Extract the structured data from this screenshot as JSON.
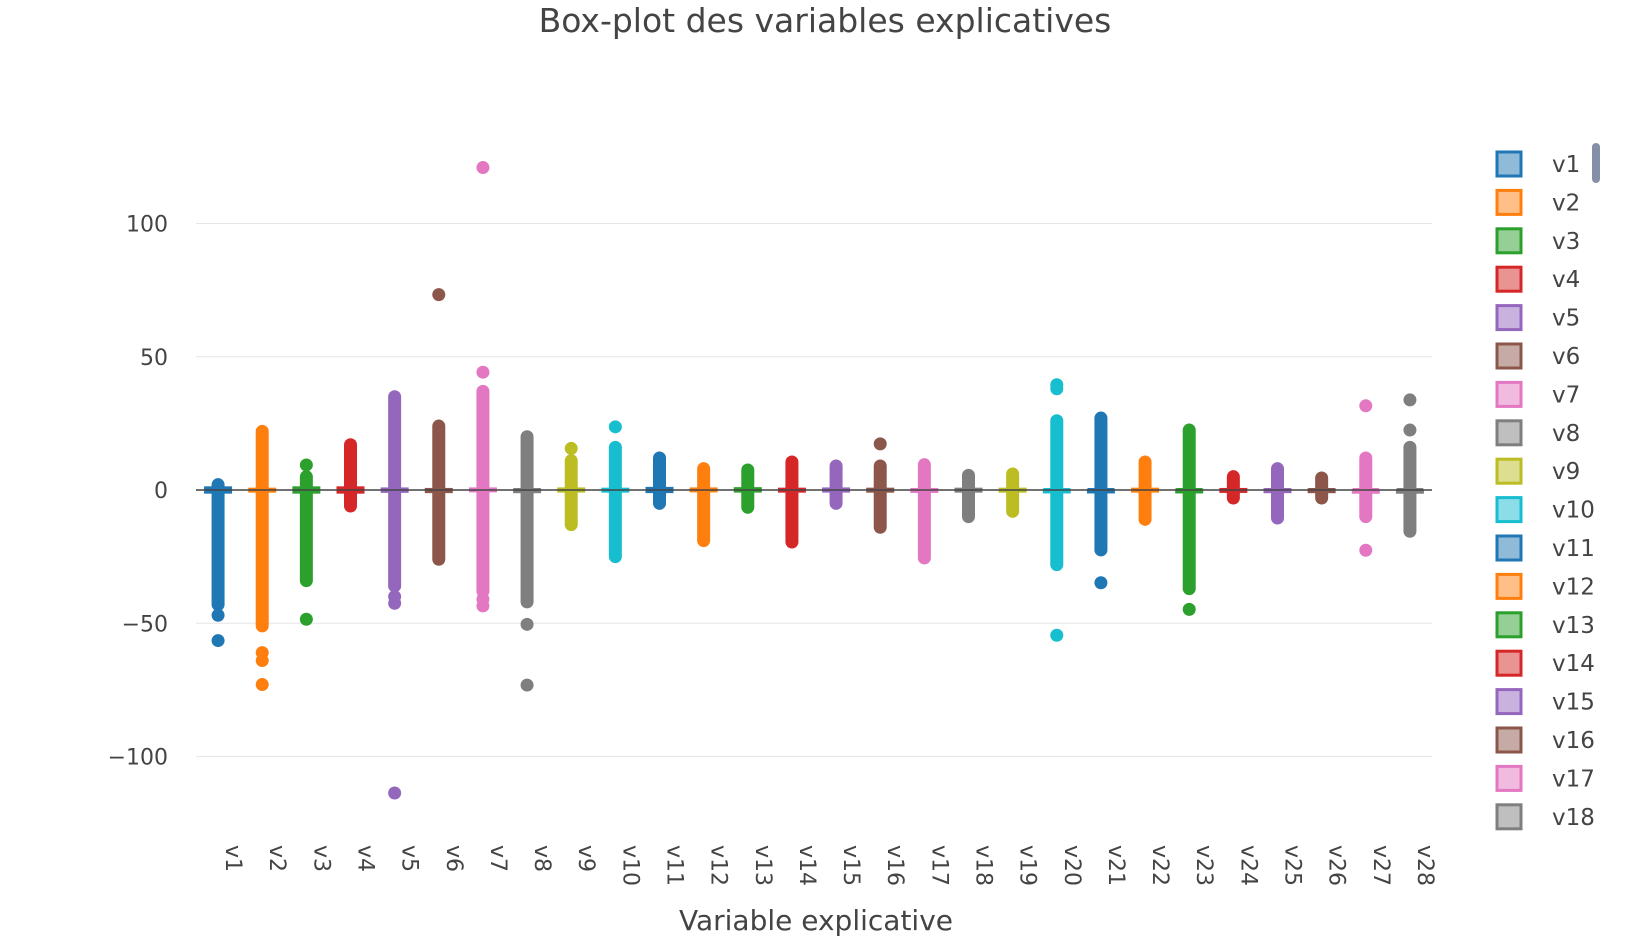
{
  "chart_data": {
    "type": "box",
    "title": "Box-plot des variables explicatives",
    "xlabel": "Variable explicative",
    "ylabel": "",
    "ylim": [
      -120,
      125
    ],
    "yticks": [
      100,
      50,
      0,
      -50,
      -100
    ],
    "ytick_labels": [
      "100",
      "50",
      "0",
      "−50",
      "−100"
    ],
    "grid": true,
    "legend_position": "right",
    "legend_visible": [
      "v1",
      "v2",
      "v3",
      "v4",
      "v5",
      "v6",
      "v7",
      "v8",
      "v9",
      "v10",
      "v11",
      "v12",
      "v13",
      "v14",
      "v15",
      "v16",
      "v17",
      "v18"
    ],
    "series": [
      {
        "name": "v1",
        "color": "#1f77b4",
        "median": 0,
        "q1": -1,
        "q3": 1,
        "whisker_low": -3,
        "whisker_high": 1,
        "outlier_range": [
          -43,
          2
        ],
        "outliers": [
          -47,
          -56.5
        ]
      },
      {
        "name": "v2",
        "color": "#ff7f0e",
        "median": 0,
        "q1": -0.5,
        "q3": 0.5,
        "whisker_low": -2,
        "whisker_high": 2,
        "outlier_range": [
          -51,
          22
        ],
        "outliers": [
          -61,
          -64,
          -73
        ]
      },
      {
        "name": "v3",
        "color": "#2ca02c",
        "median": 0,
        "q1": -1,
        "q3": 1,
        "whisker_low": -3,
        "whisker_high": 3,
        "outlier_range": [
          -34,
          5
        ],
        "outliers": [
          9.4,
          -48.5
        ]
      },
      {
        "name": "v4",
        "color": "#d62728",
        "median": 0,
        "q1": -1,
        "q3": 1,
        "whisker_low": -3,
        "whisker_high": 3,
        "outlier_range": [
          -6,
          17
        ],
        "outliers": []
      },
      {
        "name": "v5",
        "color": "#9467bd",
        "median": 0,
        "q1": -0.7,
        "q3": 0.6,
        "whisker_low": -2.5,
        "whisker_high": 2.5,
        "outlier_range": [
          -36,
          35
        ],
        "outliers": [
          -40,
          -42.5,
          -113.7
        ]
      },
      {
        "name": "v6",
        "color": "#8c564b",
        "median": 0,
        "q1": -0.8,
        "q3": 0.4,
        "whisker_low": -2.5,
        "whisker_high": 2,
        "outlier_range": [
          -26,
          24
        ],
        "outliers": [
          73.3
        ]
      },
      {
        "name": "v7",
        "color": "#e377c2",
        "median": 0,
        "q1": -0.5,
        "q3": 0.6,
        "whisker_low": -2,
        "whisker_high": 2,
        "outlier_range": [
          -38,
          37
        ],
        "outliers": [
          -41,
          -43.5,
          44.2,
          121
        ]
      },
      {
        "name": "v8",
        "color": "#7f7f7f",
        "median": 0,
        "q1": -0.2,
        "q3": 0.3,
        "whisker_low": -1,
        "whisker_high": 1,
        "outlier_range": [
          -42,
          20
        ],
        "outliers": [
          -50.4,
          -73.2
        ]
      },
      {
        "name": "v9",
        "color": "#bcbd22",
        "median": 0,
        "q1": -0.6,
        "q3": 0.6,
        "whisker_low": -2.5,
        "whisker_high": 2.5,
        "outlier_range": [
          -13,
          11
        ],
        "outliers": [
          15.6
        ]
      },
      {
        "name": "v10",
        "color": "#17becf",
        "median": 0,
        "q1": -0.5,
        "q3": 0.5,
        "whisker_low": -2,
        "whisker_high": 2,
        "outlier_range": [
          -25,
          16
        ],
        "outliers": [
          23.7
        ]
      },
      {
        "name": "v11",
        "color": "#1f77b4",
        "median": 0,
        "q1": -0.8,
        "q3": 0.8,
        "whisker_low": -3,
        "whisker_high": 3,
        "outlier_range": [
          -5,
          12
        ],
        "outliers": []
      },
      {
        "name": "v12",
        "color": "#ff7f0e",
        "median": 0,
        "q1": -0.4,
        "q3": 0.6,
        "whisker_low": -2,
        "whisker_high": 2,
        "outlier_range": [
          -19,
          8
        ],
        "outliers": []
      },
      {
        "name": "v13",
        "color": "#2ca02c",
        "median": 0,
        "q1": -0.6,
        "q3": 0.7,
        "whisker_low": -3,
        "whisker_high": 3,
        "outlier_range": [
          -6.5,
          7.5
        ],
        "outliers": []
      },
      {
        "name": "v14",
        "color": "#d62728",
        "median": 0,
        "q1": -0.4,
        "q3": 0.5,
        "whisker_low": -2,
        "whisker_high": 2,
        "outlier_range": [
          -19.5,
          10.5
        ],
        "outliers": []
      },
      {
        "name": "v15",
        "color": "#9467bd",
        "median": 0,
        "q1": -0.6,
        "q3": 0.6,
        "whisker_low": -2.5,
        "whisker_high": 2.5,
        "outlier_range": [
          -5,
          9
        ],
        "outliers": []
      },
      {
        "name": "v16",
        "color": "#8c564b",
        "median": 0,
        "q1": -0.5,
        "q3": 0.5,
        "whisker_low": -2,
        "whisker_high": 2,
        "outlier_range": [
          -14,
          9
        ],
        "outliers": [
          17.3
        ]
      },
      {
        "name": "v17",
        "color": "#e377c2",
        "median": 0,
        "q1": -0.5,
        "q3": 0.4,
        "whisker_low": -2,
        "whisker_high": 2,
        "outlier_range": [
          -25.5,
          9.5
        ],
        "outliers": []
      },
      {
        "name": "v18",
        "color": "#7f7f7f",
        "median": 0,
        "q1": -0.5,
        "q3": 0.5,
        "whisker_low": -2,
        "whisker_high": 2,
        "outlier_range": [
          -10,
          5.5
        ],
        "outliers": []
      },
      {
        "name": "v19",
        "color": "#bcbd22",
        "median": 0,
        "q1": -0.5,
        "q3": 0.5,
        "whisker_low": -2,
        "whisker_high": 2,
        "outlier_range": [
          -8,
          6
        ],
        "outliers": []
      },
      {
        "name": "v20",
        "color": "#17becf",
        "median": 0,
        "q1": -0.2,
        "q3": 0.2,
        "whisker_low": -0.8,
        "whisker_high": 0.8,
        "outlier_range": [
          -28,
          26
        ],
        "outliers": [
          38,
          39.5,
          -54.5
        ]
      },
      {
        "name": "v21",
        "color": "#1f77b4",
        "median": 0,
        "q1": -0.2,
        "q3": 0.2,
        "whisker_low": -0.8,
        "whisker_high": 0.8,
        "outlier_range": [
          -22.5,
          27
        ],
        "outliers": [
          -34.8
        ]
      },
      {
        "name": "v22",
        "color": "#ff7f0e",
        "median": 0,
        "q1": -0.5,
        "q3": 0.5,
        "whisker_low": -2,
        "whisker_high": 2,
        "outlier_range": [
          -11,
          10.5
        ],
        "outliers": []
      },
      {
        "name": "v23",
        "color": "#2ca02c",
        "median": 0,
        "q1": -0.2,
        "q3": 0.2,
        "whisker_low": -0.6,
        "whisker_high": 0.6,
        "outlier_range": [
          -37,
          22.5
        ],
        "outliers": [
          -44.8
        ]
      },
      {
        "name": "v24",
        "color": "#d62728",
        "median": 0,
        "q1": -0.4,
        "q3": 0.4,
        "whisker_low": -1.5,
        "whisker_high": 1.5,
        "outlier_range": [
          -3,
          5
        ],
        "outliers": []
      },
      {
        "name": "v25",
        "color": "#9467bd",
        "median": 0,
        "q1": -0.3,
        "q3": 0.3,
        "whisker_low": -1.2,
        "whisker_high": 1.2,
        "outlier_range": [
          -10.5,
          8
        ],
        "outliers": []
      },
      {
        "name": "v26",
        "color": "#8c564b",
        "median": 0,
        "q1": -0.3,
        "q3": 0.3,
        "whisker_low": -1.2,
        "whisker_high": 1.2,
        "outlier_range": [
          -3,
          4.5
        ],
        "outliers": []
      },
      {
        "name": "v27",
        "color": "#e377c2",
        "median": 0,
        "q1": -0.1,
        "q3": 0.1,
        "whisker_low": -0.4,
        "whisker_high": 0.4,
        "outlier_range": [
          -10,
          12
        ],
        "outliers": [
          31.6,
          -22.6
        ]
      },
      {
        "name": "v28",
        "color": "#7f7f7f",
        "median": 0,
        "q1": -0.1,
        "q3": 0.1,
        "whisker_low": -0.3,
        "whisker_high": 0.3,
        "outlier_range": [
          -15.5,
          16
        ],
        "outliers": [
          22.5,
          33.8
        ]
      }
    ]
  }
}
